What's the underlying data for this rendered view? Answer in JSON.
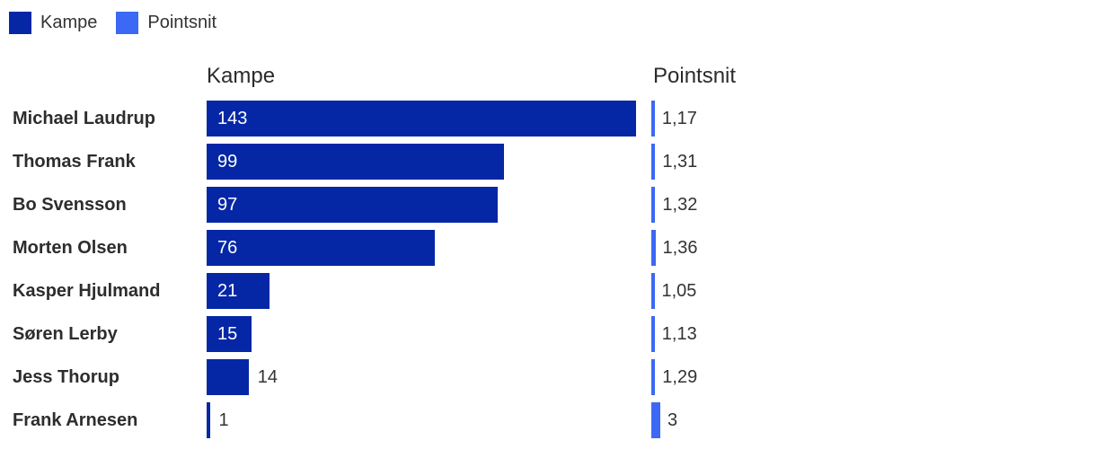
{
  "legend": {
    "items": [
      {
        "label": "Kampe",
        "color": "#0527a6"
      },
      {
        "label": "Pointsnit",
        "color": "#3b69f5"
      }
    ]
  },
  "columns": {
    "kampe_header": "Kampe",
    "pointsnit_header": "Pointsnit"
  },
  "rows": [
    {
      "name": "Michael Laudrup",
      "kampe": 143,
      "pointsnit": "1,17"
    },
    {
      "name": "Thomas Frank",
      "kampe": 99,
      "pointsnit": "1,31"
    },
    {
      "name": "Bo Svensson",
      "kampe": 97,
      "pointsnit": "1,32"
    },
    {
      "name": "Morten Olsen",
      "kampe": 76,
      "pointsnit": "1,36"
    },
    {
      "name": "Kasper Hjulmand",
      "kampe": 21,
      "pointsnit": "1,05"
    },
    {
      "name": "Søren Lerby",
      "kampe": 15,
      "pointsnit": "1,13"
    },
    {
      "name": "Jess Thorup",
      "kampe": 14,
      "pointsnit": "1,29"
    },
    {
      "name": "Frank Arnesen",
      "kampe": 1,
      "pointsnit": "3"
    }
  ],
  "colors": {
    "kampe": "#0527a6",
    "pointsnit": "#3b69f5",
    "text": "#333333",
    "label_inside": "#ffffff",
    "background": "#ffffff"
  },
  "chart_data": {
    "type": "bar",
    "orientation": "horizontal",
    "title": "",
    "categories": [
      "Michael Laudrup",
      "Thomas Frank",
      "Bo Svensson",
      "Morten Olsen",
      "Kasper Hjulmand",
      "Søren Lerby",
      "Jess Thorup",
      "Frank Arnesen"
    ],
    "series": [
      {
        "name": "Kampe",
        "values": [
          143,
          99,
          97,
          76,
          21,
          15,
          14,
          1
        ]
      },
      {
        "name": "Pointsnit",
        "values": [
          1.17,
          1.31,
          1.32,
          1.36,
          1.05,
          1.13,
          1.29,
          3
        ]
      }
    ],
    "value_labels": {
      "Kampe": [
        "143",
        "99",
        "97",
        "76",
        "21",
        "15",
        "14",
        "1"
      ],
      "Pointsnit": [
        "1,17",
        "1,31",
        "1,32",
        "1,36",
        "1,05",
        "1,13",
        "1,29",
        "3"
      ]
    },
    "legend_position": "top-left",
    "grid": false,
    "axis": "none",
    "decimal_separator": ","
  }
}
